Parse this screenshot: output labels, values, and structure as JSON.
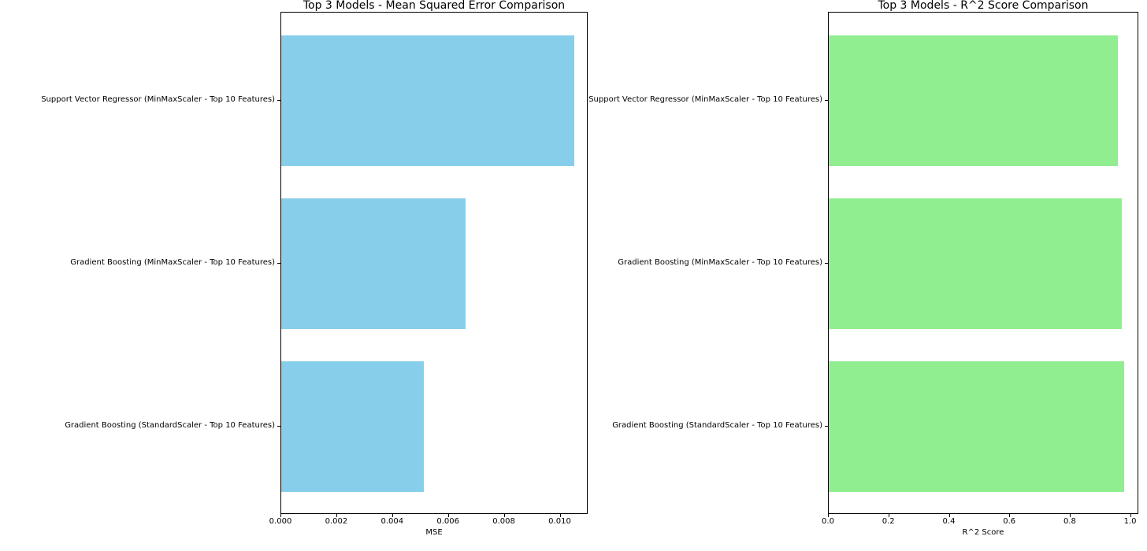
{
  "figure": {
    "background": "#ffffff",
    "text_color": "#000000"
  },
  "chart_data": [
    {
      "type": "bar",
      "orientation": "horizontal",
      "title": "Top 3 Models - Mean Squared Error Comparison",
      "xlabel": "MSE",
      "categories_top_to_bottom": [
        "Support Vector Regressor (MinMaxScaler - Top 10 Features)",
        "Gradient Boosting (MinMaxScaler - Top 10 Features)",
        "Gradient Boosting (StandardScaler - Top 10 Features)"
      ],
      "values_top_to_bottom": [
        0.0105,
        0.0066,
        0.0051
      ],
      "bar_color": "#87CEEB",
      "xlim": [
        0,
        0.011
      ],
      "ylim": [
        -0.54,
        2.54
      ],
      "bar_height_units": 0.8,
      "xticks": [
        0,
        0.002,
        0.004,
        0.006,
        0.008,
        0.01
      ],
      "xtick_labels": [
        "0.000",
        "0.002",
        "0.004",
        "0.006",
        "0.008",
        "0.010"
      ],
      "grid": false,
      "legend": null
    },
    {
      "type": "bar",
      "orientation": "horizontal",
      "title": "Top 3 Models - R^2 Score Comparison",
      "xlabel": "R^2 Score",
      "categories_top_to_bottom": [
        "Support Vector Regressor (MinMaxScaler - Top 10 Features)",
        "Gradient Boosting (MinMaxScaler - Top 10 Features)",
        "Gradient Boosting (StandardScaler - Top 10 Features)"
      ],
      "values_top_to_bottom": [
        0.957,
        0.969,
        0.978
      ],
      "bar_color": "#90EE90",
      "xlim": [
        0,
        1.027
      ],
      "ylim": [
        -0.54,
        2.54
      ],
      "bar_height_units": 0.8,
      "xticks": [
        0,
        0.2,
        0.4,
        0.6,
        0.8,
        1.0
      ],
      "xtick_labels": [
        "0.0",
        "0.2",
        "0.4",
        "0.6",
        "0.8",
        "1.0"
      ],
      "grid": false,
      "legend": null
    }
  ]
}
